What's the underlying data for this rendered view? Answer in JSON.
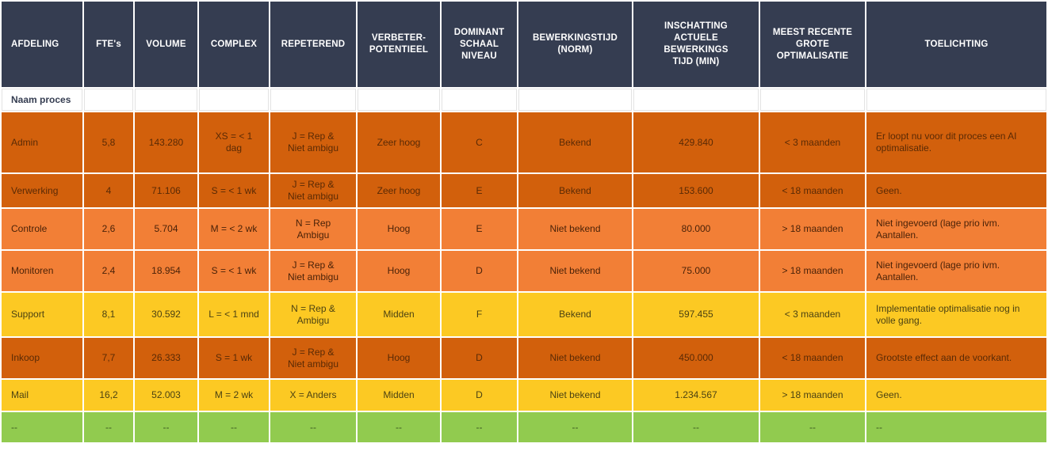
{
  "headers": {
    "afdeling": "AFDELING",
    "ftes": "FTE's",
    "volume": "VOLUME",
    "complex": "COMPLEX",
    "repeterend": "REPETEREND",
    "verbeter": "VERBETER-\nPOTENTIEEL",
    "dominant": "DOMINANT\nSCHAAL\nNIVEAU",
    "bewerkingstijd": "BEWERKINGSTIJD\n(NORM)",
    "inschatting": "INSCHATTING ACTUELE\nBEWERKINGS\nTIJD (MIN)",
    "recente": "MEEST RECENTE\nGROTE\nOPTIMALISATIE",
    "toelichting": "TOELICHTING"
  },
  "subheader": {
    "label": "Naam proces"
  },
  "colors": {
    "header": "#353d51",
    "dark_orange": "#d2600c",
    "orange": "#f27f36",
    "yellow": "#fcc923",
    "green": "#91cb4f"
  },
  "rows": [
    {
      "afdeling": "Admin",
      "ftes": "5,8",
      "volume": "143.280",
      "complex": "XS = < 1\ndag",
      "repeterend": "J = Rep &\nNiet ambigu",
      "verbeter": "Zeer hoog",
      "dominant": "C",
      "bewerkingstijd": "Bekend",
      "inschatting": "429.840",
      "recente": "< 3 maanden",
      "toelichting": "Er loopt nu voor dit proces een AI\noptimalisatie."
    },
    {
      "afdeling": "Verwerking",
      "ftes": "4",
      "volume": "71.106",
      "complex": "S = < 1 wk",
      "repeterend": "J = Rep &\nNiet ambigu",
      "verbeter": "Zeer hoog",
      "dominant": "E",
      "bewerkingstijd": "Bekend",
      "inschatting": "153.600",
      "recente": "< 18 maanden",
      "toelichting": "Geen."
    },
    {
      "afdeling": "Controle",
      "ftes": "2,6",
      "volume": "5.704",
      "complex": "M = < 2 wk",
      "repeterend": "N = Rep\nAmbigu",
      "verbeter": "Hoog",
      "dominant": "E",
      "bewerkingstijd": "Niet bekend",
      "inschatting": "80.000",
      "recente": "> 18 maanden",
      "toelichting": "Niet ingevoerd (lage prio ivm.\nAantallen."
    },
    {
      "afdeling": "Monitoren",
      "ftes": "2,4",
      "volume": "18.954",
      "complex": "S = < 1 wk",
      "repeterend": "J = Rep &\nNiet ambigu",
      "verbeter": "Hoog",
      "dominant": "D",
      "bewerkingstijd": "Niet bekend",
      "inschatting": "75.000",
      "recente": "> 18 maanden",
      "toelichting": "Niet ingevoerd (lage prio ivm.\nAantallen."
    },
    {
      "afdeling": "Support",
      "ftes": "8,1",
      "volume": "30.592",
      "complex": "L = < 1 mnd",
      "repeterend": "N = Rep &\nAmbigu",
      "verbeter": "Midden",
      "dominant": "F",
      "bewerkingstijd": "Bekend",
      "inschatting": "597.455",
      "recente": "< 3 maanden",
      "toelichting": "Implementatie optimalisatie nog in\nvolle gang."
    },
    {
      "afdeling": "Inkoop",
      "ftes": "7,7",
      "volume": "26.333",
      "complex": "S = 1 wk",
      "repeterend": "J = Rep &\nNiet ambigu",
      "verbeter": "Hoog",
      "dominant": "D",
      "bewerkingstijd": "Niet bekend",
      "inschatting": "450.000",
      "recente": "< 18 maanden",
      "toelichting": "Grootste effect aan de voorkant."
    },
    {
      "afdeling": "Mail",
      "ftes": "16,2",
      "volume": "52.003",
      "complex": "M = 2 wk",
      "repeterend": "X = Anders",
      "verbeter": "Midden",
      "dominant": "D",
      "bewerkingstijd": "Niet bekend",
      "inschatting": "1.234.567",
      "recente": "> 18 maanden",
      "toelichting": "Geen."
    },
    {
      "afdeling": "--",
      "ftes": "--",
      "volume": "--",
      "complex": "--",
      "repeterend": "--",
      "verbeter": "--",
      "dominant": "--",
      "bewerkingstijd": "--",
      "inschatting": "--",
      "recente": "--",
      "toelichting": "--"
    }
  ]
}
